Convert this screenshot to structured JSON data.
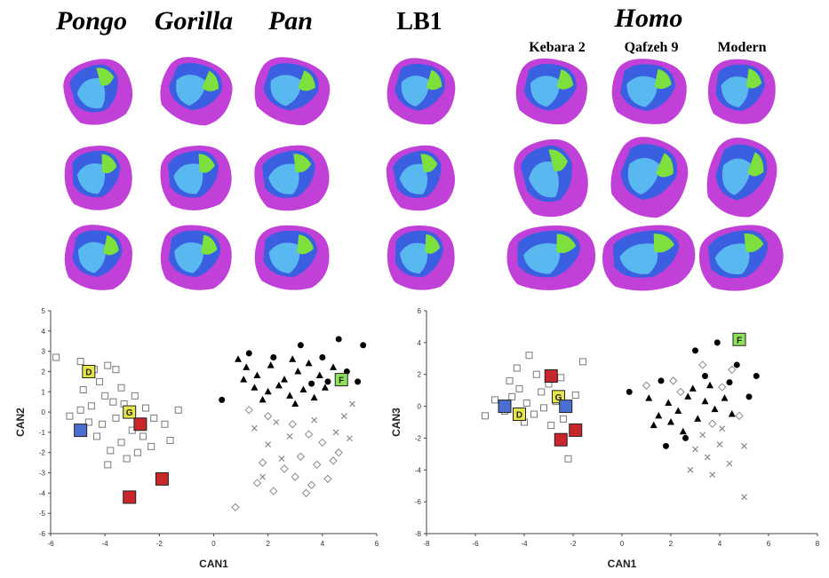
{
  "figure": {
    "genus": [
      "Pongo",
      "Gorilla",
      "Pan"
    ],
    "lb1": "LB1",
    "homo": "Homo",
    "specimens": [
      "Kebara 2",
      "Qafzeh 9",
      "Modern"
    ]
  },
  "chart_data": [
    {
      "type": "scatter",
      "xlabel": "CAN1",
      "ylabel": "CAN2",
      "xlim": [
        -6,
        6
      ],
      "ylim": [
        -6,
        5
      ],
      "xticks": [
        -6,
        -4,
        -2,
        0,
        2,
        4,
        6
      ],
      "yticks": [
        -6,
        -5,
        -4,
        -3,
        -2,
        -1,
        0,
        1,
        2,
        3,
        4,
        5
      ],
      "series": [
        {
          "marker": "square",
          "color": "#7a7a7a",
          "x": [
            -5.8,
            -4.9,
            -4.4,
            -3.9,
            -3.6,
            -4.2,
            -3.4,
            -4.8,
            -4.0,
            -3.7,
            -4.5,
            -4.9,
            -3.3,
            -2.9,
            -2.5,
            -2.2,
            -3.6,
            -4.1,
            -4.6,
            -3.0,
            -2.6,
            -3.4,
            -3.8,
            -2.3,
            -1.6,
            -4.3,
            -3.2,
            -2.8,
            -1.3,
            -1.8,
            -5.3,
            -3.9
          ],
          "y": [
            2.7,
            2.5,
            2.1,
            2.3,
            2.1,
            1.5,
            1.2,
            1.1,
            0.8,
            0.5,
            0.3,
            0.1,
            0.4,
            0.8,
            0.2,
            -0.3,
            -0.3,
            -0.6,
            -0.5,
            -0.9,
            -1.2,
            -1.5,
            -1.9,
            -1.7,
            -1.4,
            -1.2,
            -2.3,
            -2.0,
            0.1,
            -0.6,
            -0.2,
            -2.6
          ]
        },
        {
          "marker": "triangle",
          "color": "#000000",
          "x": [
            0.9,
            1.2,
            1.6,
            2.1,
            2.6,
            3.1,
            3.5,
            3.9,
            1.5,
            2.0,
            2.4,
            2.8,
            3.3,
            3.7,
            4.1,
            1.1,
            2.9,
            4.4,
            1.8,
            3.0
          ],
          "y": [
            2.6,
            2.2,
            1.8,
            2.3,
            1.6,
            2.0,
            2.4,
            1.8,
            1.2,
            1.0,
            1.3,
            0.8,
            1.1,
            0.7,
            1.2,
            1.6,
            2.6,
            2.2,
            0.6,
            0.4
          ]
        },
        {
          "marker": "circle",
          "color": "#000000",
          "x": [
            0.3,
            1.3,
            3.2,
            4.6,
            5.5,
            4.9,
            5.3,
            4.2,
            4.0,
            2.2,
            3.6
          ],
          "y": [
            0.6,
            2.9,
            3.3,
            3.6,
            3.3,
            2.0,
            1.5,
            1.5,
            2.7,
            2.7,
            1.4
          ]
        },
        {
          "marker": "diamond",
          "color": "#8a8a8a",
          "x": [
            1.3,
            2.0,
            2.9,
            3.5,
            4.0,
            3.2,
            3.8,
            4.4,
            2.6,
            3.0,
            3.6,
            4.2,
            1.6,
            2.2,
            3.4,
            4.6,
            0.8,
            1.8
          ],
          "y": [
            0.1,
            -0.2,
            -0.6,
            -1.1,
            -1.5,
            -2.2,
            -2.6,
            -2.4,
            -2.8,
            -3.2,
            -3.6,
            -3.3,
            -3.5,
            -3.9,
            -4.0,
            -2.0,
            -4.7,
            -2.5
          ]
        },
        {
          "marker": "cross",
          "color": "#8a8a8a",
          "x": [
            1.5,
            2.3,
            3.7,
            4.8,
            5.1,
            4.5,
            2.0,
            2.8,
            5.0,
            2.5,
            1.8
          ],
          "y": [
            -0.8,
            -0.5,
            -0.4,
            -0.2,
            0.4,
            -1.0,
            -1.6,
            -1.2,
            -1.3,
            -2.3,
            -3.2
          ]
        },
        {
          "marker": "box",
          "color": "#e6e64a",
          "x": [
            -4.6,
            -3.1
          ],
          "y": [
            2.0,
            0.0
          ],
          "labels": [
            "D",
            "G"
          ]
        },
        {
          "marker": "box",
          "color": "#4a6fd0",
          "x": [
            -4.9
          ],
          "y": [
            -0.9
          ]
        },
        {
          "marker": "box",
          "color": "#c8262a",
          "x": [
            -2.7,
            -3.1,
            -1.9
          ],
          "y": [
            -0.6,
            -4.2,
            -3.3
          ]
        },
        {
          "marker": "box",
          "color": "#8ee05a",
          "x": [
            4.7
          ],
          "y": [
            1.6
          ],
          "labels": [
            "F"
          ]
        }
      ]
    },
    {
      "type": "scatter",
      "xlabel": "CAN1",
      "ylabel": "CAN3",
      "xlim": [
        -8,
        8
      ],
      "ylim": [
        -8,
        6
      ],
      "xticks": [
        -8,
        -6,
        -4,
        -2,
        0,
        2,
        4,
        6,
        8
      ],
      "yticks": [
        -8,
        -6,
        -4,
        -2,
        0,
        2,
        4,
        6
      ],
      "series": [
        {
          "marker": "square",
          "color": "#7a7a7a",
          "x": [
            -5.2,
            -4.8,
            -4.5,
            -4.2,
            -3.9,
            -3.6,
            -3.3,
            -3.0,
            -2.7,
            -2.4,
            -4.0,
            -3.5,
            -3.8,
            -2.9,
            -4.6,
            -2.2,
            -1.6,
            -1.9,
            -5.6,
            -3.2,
            -4.3,
            -2.5
          ],
          "y": [
            0.4,
            -0.3,
            0.6,
            1.1,
            0.2,
            -0.5,
            0.9,
            1.4,
            0.3,
            -0.8,
            -1.0,
            2.0,
            3.2,
            -1.2,
            1.6,
            -3.3,
            2.8,
            0.7,
            -0.6,
            -0.1,
            2.4,
            1.8
          ]
        },
        {
          "marker": "triangle",
          "color": "#000000",
          "x": [
            1.1,
            1.5,
            1.9,
            2.3,
            2.7,
            3.1,
            3.4,
            3.8,
            4.2,
            2.0,
            2.9,
            3.6,
            1.3,
            4.5,
            2.5
          ],
          "y": [
            0.5,
            -0.6,
            0.2,
            -0.3,
            0.6,
            -0.8,
            0.3,
            -0.2,
            0.5,
            -1.0,
            1.1,
            1.3,
            -1.2,
            -0.5,
            -1.6
          ]
        },
        {
          "marker": "circle",
          "color": "#000000",
          "x": [
            0.3,
            1.6,
            3.0,
            3.9,
            4.7,
            5.5,
            5.2,
            1.8,
            2.6,
            4.4,
            3.4
          ],
          "y": [
            0.9,
            1.6,
            3.5,
            4.0,
            2.6,
            1.9,
            0.6,
            -2.5,
            -2.0,
            1.5,
            1.9
          ]
        },
        {
          "marker": "diamond",
          "color": "#8a8a8a",
          "x": [
            1.0,
            2.1,
            3.3,
            4.5,
            2.4,
            4.1,
            3.7,
            4.8
          ],
          "y": [
            1.3,
            1.6,
            2.6,
            2.3,
            0.9,
            1.2,
            -1.1,
            -0.6
          ]
        },
        {
          "marker": "cross",
          "color": "#8a8a8a",
          "x": [
            3.0,
            3.5,
            4.0,
            4.4,
            3.7,
            2.8,
            5.0,
            5.0,
            4.1,
            3.3
          ],
          "y": [
            -2.7,
            -3.2,
            -2.4,
            -3.6,
            -4.3,
            -4.0,
            -2.5,
            -5.7,
            -1.4,
            -1.8
          ]
        },
        {
          "marker": "box",
          "color": "#e6e64a",
          "x": [
            -4.2,
            -2.6
          ],
          "y": [
            -0.5,
            0.6
          ],
          "labels": [
            "D",
            "G"
          ]
        },
        {
          "marker": "box",
          "color": "#4a6fd0",
          "x": [
            -4.8,
            -2.3
          ],
          "y": [
            0.0,
            0.0
          ]
        },
        {
          "marker": "box",
          "color": "#c8262a",
          "x": [
            -2.9,
            -2.5,
            -1.9
          ],
          "y": [
            1.9,
            -2.1,
            -1.5
          ]
        },
        {
          "marker": "box",
          "color": "#8ee05a",
          "x": [
            4.8
          ],
          "y": [
            4.2
          ],
          "labels": [
            "F"
          ]
        }
      ]
    }
  ]
}
